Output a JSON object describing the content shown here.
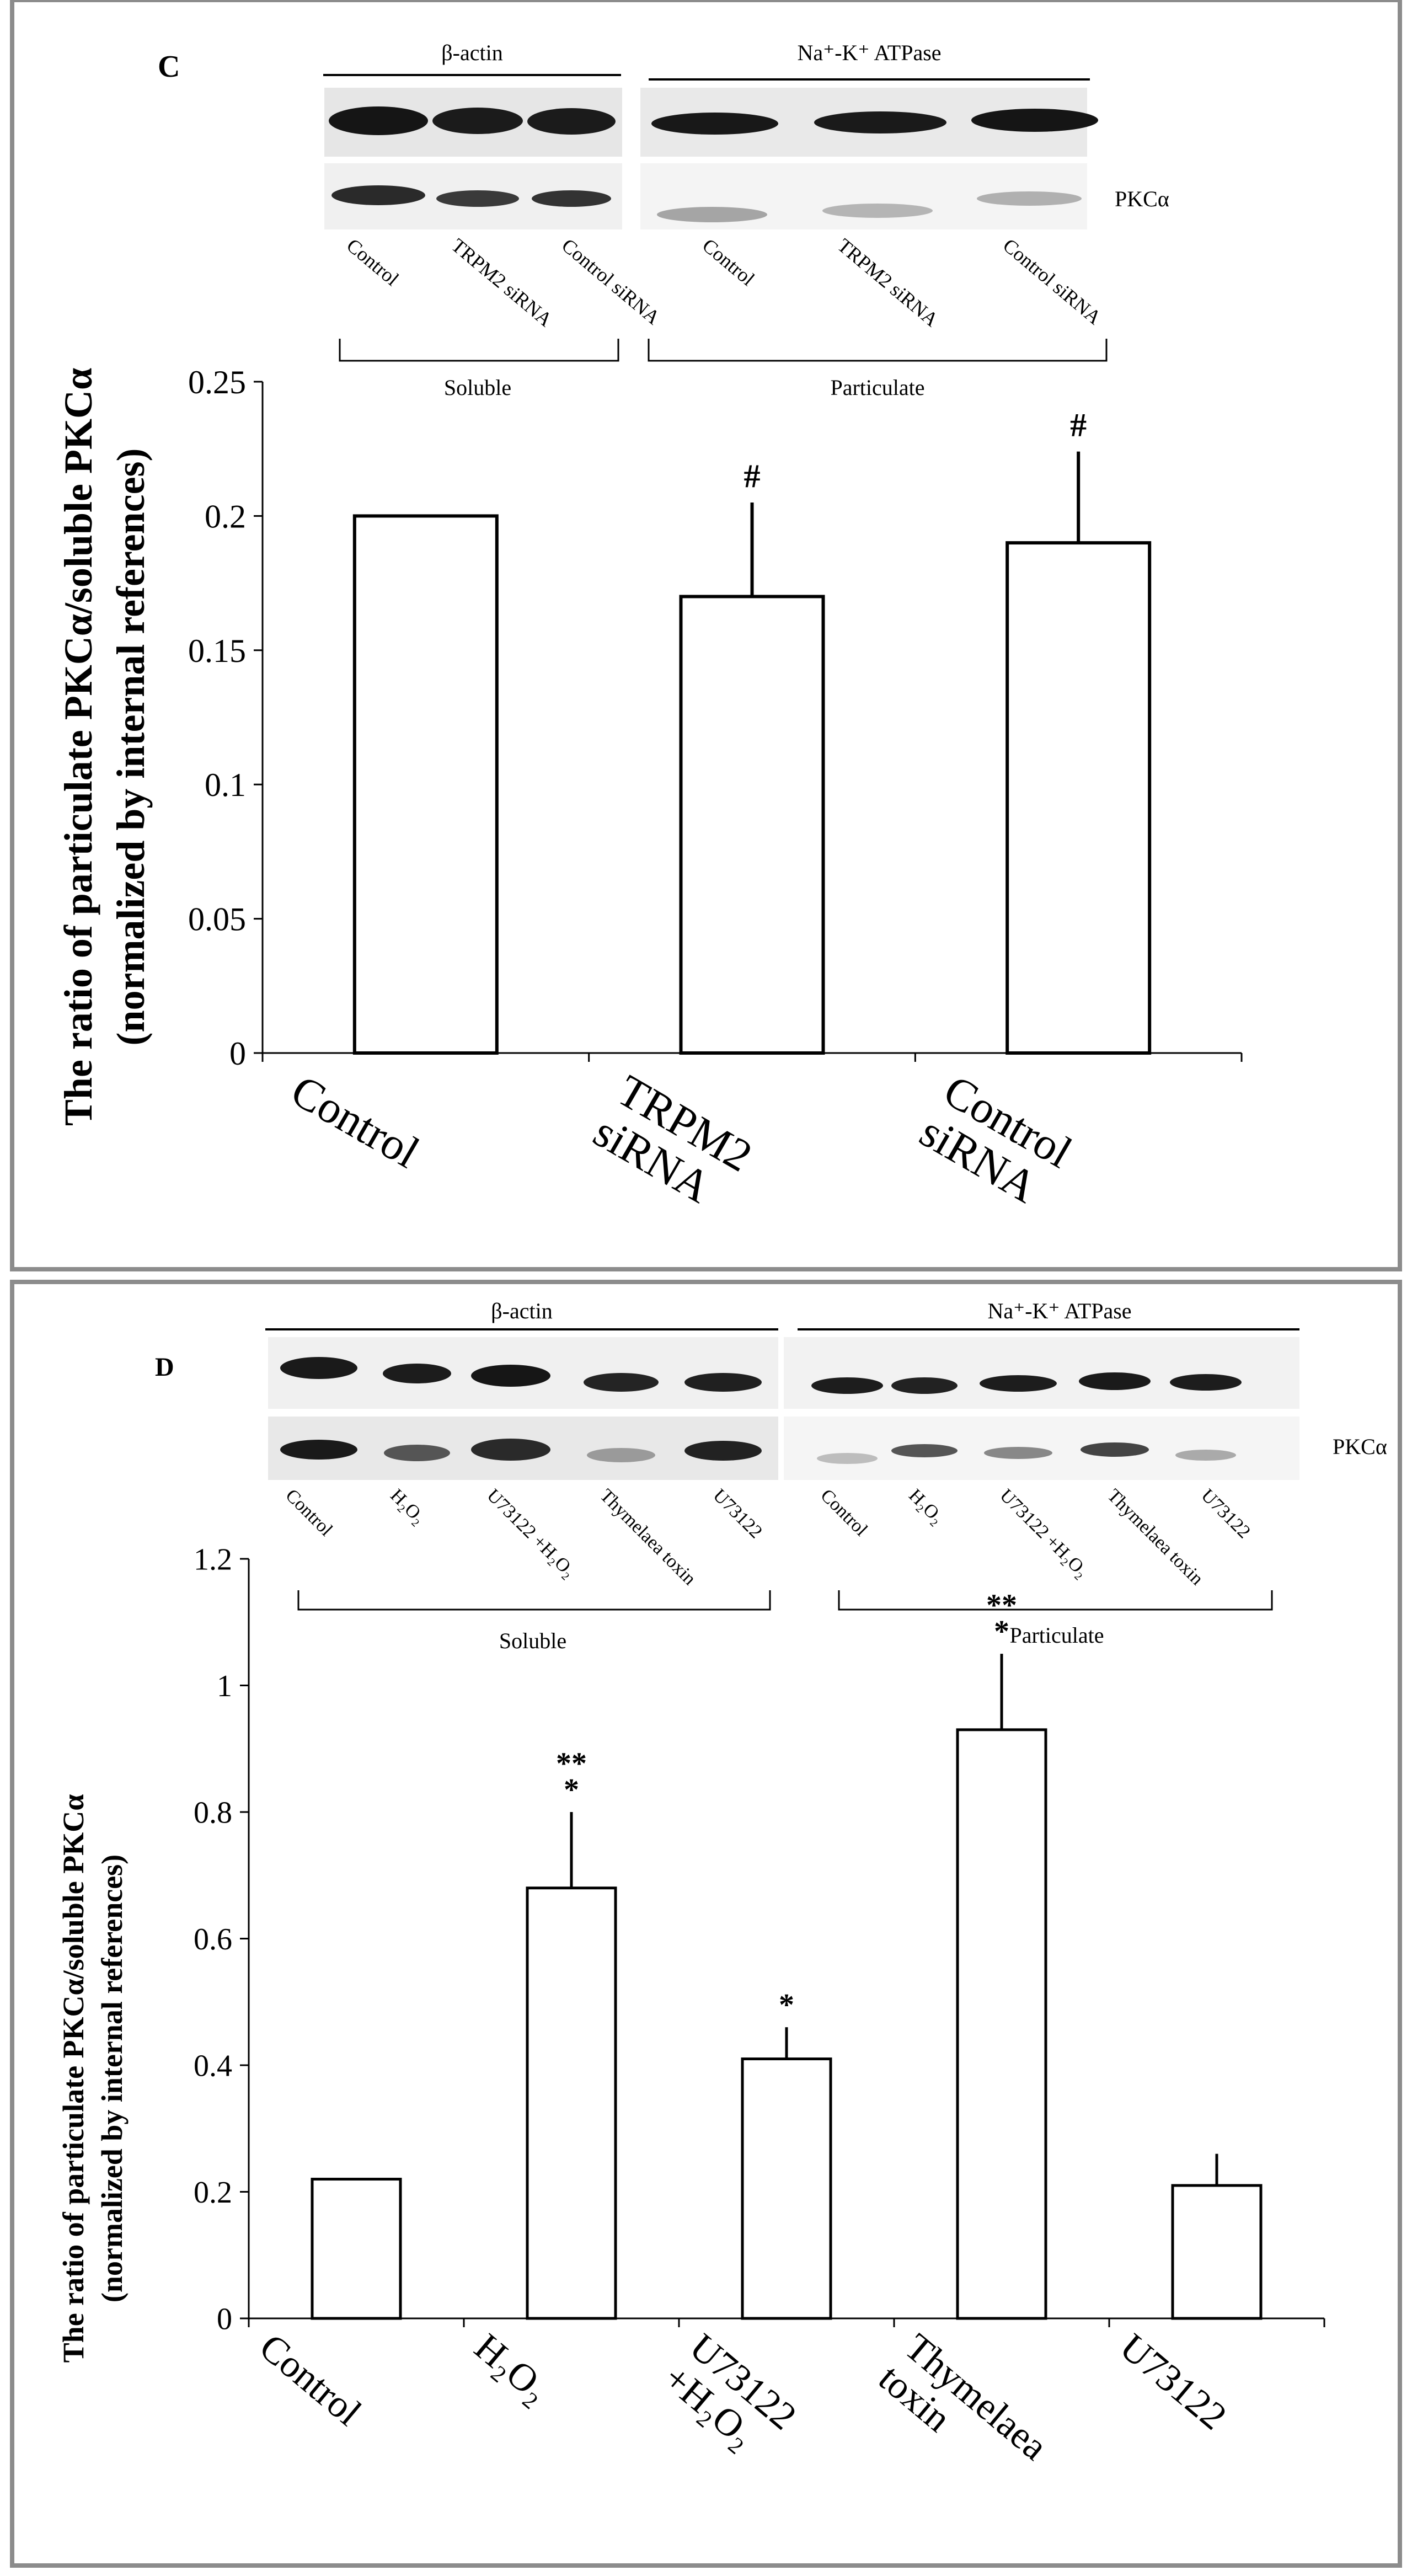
{
  "panels": [
    {
      "label": "C",
      "blot": {
        "actin_label": "β-actin",
        "atpase_label": "Na⁺-K⁺ ATPase",
        "pkc_label": "PKCα",
        "lane_labels": [
          "Control",
          "TRPM2 siRNA",
          "Control siRNA",
          "Control",
          "TRPM2 siRNA",
          "Control siRNA"
        ],
        "soluble_label": "Soluble",
        "particulate_label": "Particulate"
      }
    },
    {
      "label": "D",
      "blot": {
        "actin_label": "β-actin",
        "atpase_label": "Na⁺-K⁺ ATPase",
        "pkc_label": "PKCα",
        "lane_labels": [
          "Control",
          "H₂O₂",
          "U73122 +H₂O₂",
          "Thymelaea toxin",
          "U73122",
          "Control",
          "H₂O₂",
          "U73122 +H₂O₂",
          "Thymelaea toxin",
          "U73122"
        ],
        "soluble_label": "Soluble",
        "particulate_label": "Particulate"
      }
    }
  ],
  "chart_data": [
    {
      "type": "bar",
      "panel": "C",
      "ylabel_line1": "The ratio of particulate PKCα/soluble PKCα",
      "ylabel_line2": "(normalized by internal references)",
      "categories": [
        [
          "Control"
        ],
        [
          "TRPM2",
          "siRNA"
        ],
        [
          "Control",
          "siRNA"
        ]
      ],
      "values": [
        0.2,
        0.17,
        0.19
      ],
      "errors": [
        0,
        0.035,
        0.034
      ],
      "annotations": [
        "",
        "#",
        "#"
      ],
      "ylim": [
        0,
        0.25
      ],
      "yticks": [
        "0",
        "0.05",
        "0.1",
        "0.15",
        "0.2",
        "0.25"
      ],
      "grid": false
    },
    {
      "type": "bar",
      "panel": "D",
      "ylabel_line1": "The ratio of particulate PKCα/soluble PKCα",
      "ylabel_line2": "(normalized by internal references)",
      "categories": [
        [
          "Control"
        ],
        [
          "H₂O₂"
        ],
        [
          "U73122",
          "+H₂O₂"
        ],
        [
          "Thymelaea",
          "toxin"
        ],
        [
          "U73122"
        ]
      ],
      "values": [
        0.22,
        0.68,
        0.41,
        0.93,
        0.21
      ],
      "errors": [
        0,
        0.12,
        0.05,
        0.12,
        0.05
      ],
      "annotations": [
        [],
        [
          "**",
          "*"
        ],
        [
          "*"
        ],
        [
          "**",
          "*"
        ],
        []
      ],
      "ylim": [
        0,
        1.2
      ],
      "yticks": [
        "0",
        "0.2",
        "0.4",
        "0.6",
        "0.8",
        "1",
        "1.2"
      ],
      "grid": false
    }
  ]
}
